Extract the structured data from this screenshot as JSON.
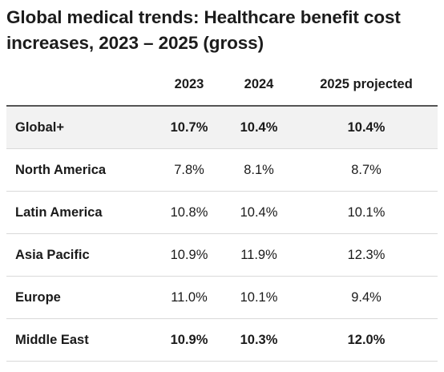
{
  "title": "Global medical trends: Healthcare benefit cost increases, 2023 – 2025 (gross)",
  "chart_data": {
    "type": "table",
    "title": "Global medical trends: Healthcare benefit cost increases, 2023 – 2025 (gross)",
    "columns": [
      "",
      "2023",
      "2024",
      "2025 projected"
    ],
    "rows": [
      {
        "region": "Global+",
        "values": [
          "10.7%",
          "10.4%",
          "10.4%"
        ],
        "bold": true,
        "shaded": true
      },
      {
        "region": "North America",
        "values": [
          "7.8%",
          "8.1%",
          "8.7%"
        ],
        "bold": false,
        "shaded": false
      },
      {
        "region": "Latin America",
        "values": [
          "10.8%",
          "10.4%",
          "10.1%"
        ],
        "bold": false,
        "shaded": false
      },
      {
        "region": "Asia Pacific",
        "values": [
          "10.9%",
          "11.9%",
          "12.3%"
        ],
        "bold": false,
        "shaded": false
      },
      {
        "region": "Europe",
        "values": [
          "11.0%",
          "10.1%",
          "9.4%"
        ],
        "bold": false,
        "shaded": false
      },
      {
        "region": "Middle East",
        "values": [
          "10.9%",
          "10.3%",
          "12.0%"
        ],
        "bold": true,
        "shaded": false
      }
    ]
  },
  "colors": {
    "highlight_row_bg": "#f2f2f2",
    "header_rule": "#555555",
    "row_rule": "#d9d9d9",
    "text": "#1a1a1a"
  }
}
